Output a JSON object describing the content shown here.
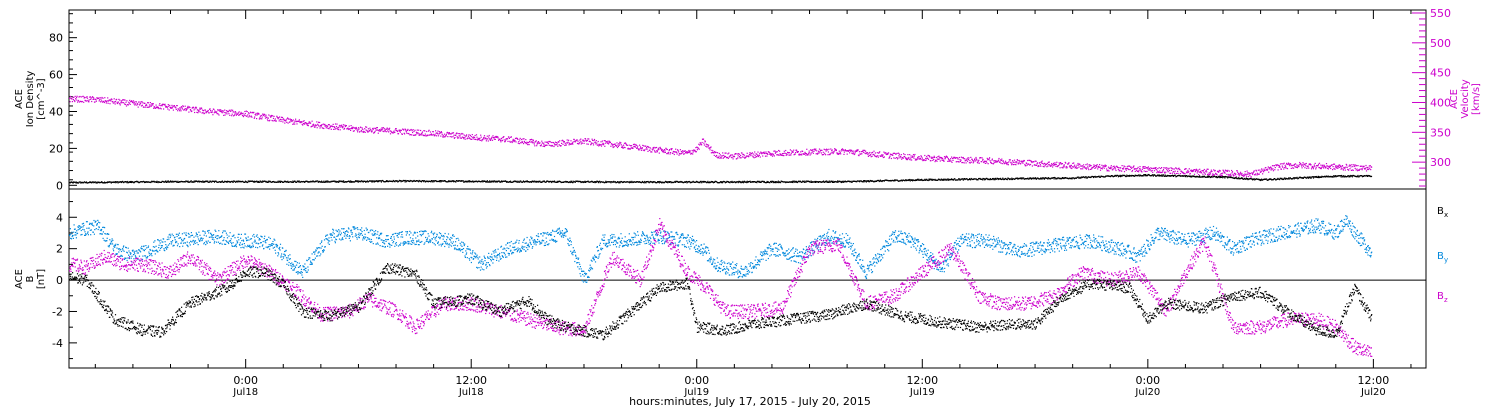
{
  "chart_data": [
    {
      "type": "scatter",
      "panel": "top",
      "xlabel": "hours:minutes, July 17, 2015 - July 20, 2015",
      "x_unit": "hours since 2015-07-17 00:00",
      "xlim": [
        14.6,
        86.8
      ],
      "left_axis": {
        "label_lines": [
          "ACE",
          "Ion Density",
          "[cm^-3]"
        ],
        "ylim": [
          -2,
          95
        ],
        "ticks": [
          0,
          20,
          40,
          60,
          80
        ],
        "color": "#000000"
      },
      "right_axis": {
        "label_lines": [
          "ACE",
          "Velocity",
          "[km/s]"
        ],
        "ylim": [
          255,
          555
        ],
        "ticks": [
          300,
          350,
          400,
          450,
          500,
          550
        ],
        "color": "#cc00cc"
      },
      "series": [
        {
          "name": "Ion Density",
          "axis": "left",
          "color": "#000000",
          "x": [
            14.6,
            20,
            24,
            28,
            32,
            36,
            40,
            44,
            48,
            52,
            56,
            60,
            64,
            68,
            70,
            72,
            74,
            76,
            78,
            80,
            82,
            83.9
          ],
          "y": [
            1.5,
            2.0,
            2.0,
            2.0,
            2.3,
            2.2,
            2.0,
            1.8,
            1.8,
            1.9,
            2.0,
            3.0,
            3.5,
            4.0,
            5.0,
            5.5,
            5.0,
            4.5,
            3.0,
            4.0,
            5.0,
            5.0
          ]
        },
        {
          "name": "Velocity",
          "axis": "right",
          "color": "#cc00cc",
          "x": [
            14.6,
            16,
            18,
            20,
            22,
            24,
            26,
            28,
            30,
            32,
            34,
            36,
            38,
            40,
            42,
            44,
            46,
            47.5,
            48,
            48.3,
            49,
            50,
            52,
            54,
            56,
            58,
            60,
            62,
            64,
            66,
            68,
            70,
            72,
            74,
            76,
            77.5,
            79,
            80,
            82,
            83.9
          ],
          "y": [
            406,
            405,
            398,
            392,
            385,
            381,
            370,
            362,
            355,
            352,
            348,
            342,
            338,
            330,
            335,
            328,
            320,
            315,
            322,
            335,
            312,
            310,
            315,
            317,
            318,
            312,
            307,
            304,
            302,
            298,
            294,
            290,
            288,
            285,
            282,
            280,
            293,
            295,
            292,
            290
          ]
        }
      ]
    },
    {
      "type": "scatter",
      "panel": "bottom",
      "xlabel": "hours:minutes, July 17, 2015 - July 20, 2015",
      "x_unit": "hours since 2015-07-17 00:00",
      "xlim": [
        14.6,
        86.8
      ],
      "ylabel_lines": [
        "ACE",
        "B",
        "[nT]"
      ],
      "ylim": [
        -5.6,
        5.8
      ],
      "ticks": [
        -4,
        -2,
        0,
        2,
        4
      ],
      "zero_line": true,
      "series": [
        {
          "name": "B_x",
          "color": "#000000",
          "x": [
            14.6,
            15.5,
            17,
            18.5,
            19.5,
            21,
            23,
            24,
            25,
            26,
            27,
            28.5,
            30,
            31.5,
            33,
            34,
            36,
            37.5,
            39,
            40,
            41,
            43,
            44.5,
            46,
            47.5,
            48,
            49.5,
            51,
            53,
            55,
            57,
            59,
            61,
            63,
            65,
            66,
            67.5,
            69,
            71,
            72,
            73,
            75,
            76.5,
            78,
            80,
            81,
            82,
            83,
            83.9
          ],
          "y": [
            0.2,
            0.0,
            -2.5,
            -3.2,
            -3.3,
            -1.5,
            -0.5,
            0.5,
            0.5,
            -0.3,
            -2.0,
            -2.3,
            -1.7,
            0.8,
            0.4,
            -1.5,
            -1.2,
            -2.0,
            -1.3,
            -2.5,
            -3.0,
            -3.5,
            -2.0,
            -0.5,
            -0.2,
            -3.0,
            -3.2,
            -2.8,
            -2.5,
            -2.2,
            -1.5,
            -2.3,
            -2.7,
            -3.0,
            -2.8,
            -2.8,
            -1.0,
            -0.2,
            -0.5,
            -2.5,
            -1.5,
            -1.8,
            -1.0,
            -0.8,
            -2.5,
            -3.2,
            -3.4,
            -0.5,
            -2.5
          ]
        },
        {
          "name": "B_y",
          "color": "#0088dd",
          "x": [
            14.6,
            15.5,
            16.2,
            17,
            18,
            19,
            20,
            21,
            22.5,
            23.5,
            24.5,
            25.5,
            27,
            28.5,
            30,
            31.5,
            32.5,
            34,
            35,
            36.5,
            38,
            39.5,
            41,
            42,
            43,
            44.5,
            46,
            47.5,
            48.3,
            49,
            50.5,
            52,
            53.5,
            55,
            56,
            57,
            58.5,
            59.5,
            61,
            62,
            63.5,
            65,
            66,
            67.5,
            69,
            70.5,
            71.5,
            72.5,
            74,
            75.5,
            76.5,
            77.5,
            79,
            80,
            81,
            82,
            82.5,
            83.9
          ],
          "y": [
            3.0,
            3.3,
            3.4,
            2.0,
            1.5,
            2.0,
            2.5,
            2.6,
            2.8,
            2.5,
            2.5,
            2.2,
            0.5,
            2.8,
            3.0,
            2.5,
            2.7,
            2.7,
            2.5,
            1.0,
            2.0,
            2.5,
            3.0,
            0.0,
            2.5,
            2.6,
            2.8,
            2.5,
            2.0,
            1.0,
            0.5,
            2.0,
            1.5,
            2.8,
            2.5,
            0.5,
            2.8,
            2.5,
            0.7,
            2.5,
            2.5,
            1.8,
            2.0,
            2.3,
            2.5,
            2.0,
            1.5,
            3.0,
            2.5,
            3.0,
            2.0,
            2.5,
            3.0,
            3.2,
            3.5,
            3.0,
            3.8,
            1.7
          ]
        },
        {
          "name": "B_z",
          "color": "#cc00cc",
          "x": [
            14.6,
            15.5,
            16.5,
            17.5,
            18.5,
            20,
            21,
            22.5,
            24,
            25,
            26.5,
            28,
            29.5,
            30.5,
            32,
            33,
            34.5,
            36,
            37.5,
            39,
            40.5,
            42,
            43.5,
            45,
            46,
            47.5,
            48.5,
            49.5,
            51,
            52.5,
            54,
            55.5,
            57,
            58.5,
            60,
            61.5,
            63,
            64,
            65.5,
            67,
            68.5,
            70,
            71.5,
            73,
            74,
            75,
            76.5,
            78,
            79.5,
            81,
            82,
            83,
            83.9
          ],
          "y": [
            1.0,
            0.8,
            1.5,
            1.0,
            1.0,
            0.5,
            1.5,
            0.0,
            1.3,
            0.7,
            -0.5,
            -2.2,
            -2.0,
            -1.2,
            -2.0,
            -3.0,
            -1.5,
            -1.5,
            -2.0,
            -2.5,
            -3.0,
            -3.2,
            1.5,
            0.0,
            3.5,
            0.5,
            -0.5,
            -2.0,
            -2.0,
            -1.8,
            2.0,
            2.3,
            -1.5,
            -1.0,
            0.5,
            2.0,
            -1.0,
            -1.5,
            -1.5,
            -1.0,
            0.5,
            0.0,
            0.5,
            -2.0,
            0.5,
            2.5,
            -3.0,
            -3.0,
            -2.5,
            -2.5,
            -3.0,
            -4.3,
            -4.7
          ]
        }
      ],
      "legend": [
        {
          "base": "B",
          "sub": "x",
          "color": "#000000"
        },
        {
          "base": "B",
          "sub": "y",
          "color": "#0088dd"
        },
        {
          "base": "B",
          "sub": "z",
          "color": "#cc00cc"
        }
      ],
      "x_tick_labels": [
        {
          "t": 24,
          "time": "0:00",
          "date": "Jul18"
        },
        {
          "t": 36,
          "time": "12:00",
          "date": "Jul18"
        },
        {
          "t": 48,
          "time": "0:00",
          "date": "Jul19"
        },
        {
          "t": 60,
          "time": "12:00",
          "date": "Jul19"
        },
        {
          "t": 72,
          "time": "0:00",
          "date": "Jul20"
        },
        {
          "t": 84,
          "time": "12:00",
          "date": "Jul20"
        }
      ]
    }
  ]
}
